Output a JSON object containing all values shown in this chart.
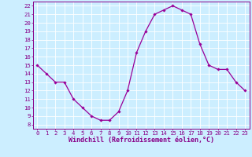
{
  "x": [
    0,
    1,
    2,
    3,
    4,
    5,
    6,
    7,
    8,
    9,
    10,
    11,
    12,
    13,
    14,
    15,
    16,
    17,
    18,
    19,
    20,
    21,
    22,
    23
  ],
  "y": [
    15,
    14,
    13,
    13,
    11,
    10,
    9,
    8.5,
    8.5,
    9.5,
    12,
    16.5,
    19,
    21,
    21.5,
    22,
    21.5,
    21,
    17.5,
    15,
    14.5,
    14.5,
    13,
    12
  ],
  "line_color": "#990099",
  "marker": "D",
  "marker_size": 1.8,
  "bg_color": "#cceeff",
  "grid_color": "#ffffff",
  "xlabel": "Windchill (Refroidissement éolien,°C)",
  "xlim": [
    -0.5,
    23.5
  ],
  "ylim": [
    7.5,
    22.5
  ],
  "xticks": [
    0,
    1,
    2,
    3,
    4,
    5,
    6,
    7,
    8,
    9,
    10,
    11,
    12,
    13,
    14,
    15,
    16,
    17,
    18,
    19,
    20,
    21,
    22,
    23
  ],
  "yticks": [
    8,
    9,
    10,
    11,
    12,
    13,
    14,
    15,
    16,
    17,
    18,
    19,
    20,
    21,
    22
  ],
  "tick_fontsize": 5.2,
  "xlabel_fontsize": 6.0,
  "label_color": "#880088",
  "tick_color": "#880088",
  "axis_color": "#880088",
  "line_width": 0.9
}
